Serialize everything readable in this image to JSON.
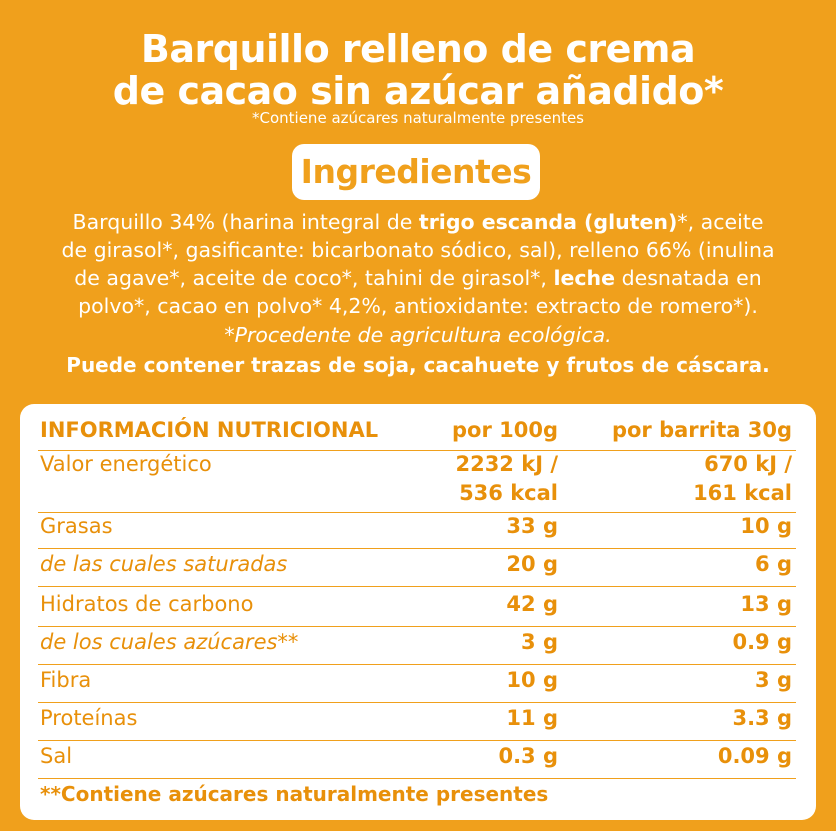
{
  "title": {
    "line1": "Barquillo relleno de crema",
    "line2": "de cacao sin azúcar añadido*",
    "note": "*Contiene azúcares naturalmente presentes"
  },
  "badge": "Ingredientes",
  "ingredients": {
    "l1a": "Barquillo 34% (harina integral de ",
    "l1b": "trigo escanda (gluten)",
    "l1c": "*, aceite",
    "l2": "de girasol*, gasificante: bicarbonato sódico, sal), relleno 66% (inulina",
    "l3": "de agave*, aceite de coco*, tahini de girasol*, ",
    "l3b": "leche",
    "l3c": " desnatada en",
    "l4": "polvo*, cacao en polvo* 4,2%, antioxidante: extracto de romero*).",
    "organic": "*Procedente de agricultura ecológica.",
    "traces": "Puede contener trazas de soja, cacahuete y frutos de cáscara."
  },
  "table": {
    "header": [
      "INFORMACIÓN NUTRICIONAL",
      "por 100g",
      "por barrita 30g"
    ],
    "energy": {
      "label": "Valor energético",
      "v100a": "2232 kJ /",
      "v100b": "536 kcal",
      "vbara": "670 kJ /",
      "vbarb": "161 kcal"
    },
    "rows": [
      {
        "label": "Grasas",
        "v100": "33 g",
        "vbar": "10 g"
      },
      {
        "label": "de las cuales saturadas",
        "v100": "20 g",
        "vbar": "6 g"
      },
      {
        "label": "Hidratos de carbono",
        "v100": "42 g",
        "vbar": "13 g"
      },
      {
        "label": "de los cuales azúcares**",
        "v100": "3 g",
        "vbar": "0.9 g"
      },
      {
        "label": "Fibra",
        "v100": "10 g",
        "vbar": "3 g"
      },
      {
        "label": "Proteínas",
        "v100": "11 g",
        "vbar": "3.3 g"
      },
      {
        "label": "Sal",
        "v100": "0.3 g",
        "vbar": "0.09 g"
      }
    ],
    "footnote": "**Contiene azúcares naturalmente presentes"
  },
  "colors": {
    "background": "#f0a01c",
    "text_on_panel": "#e8900a",
    "panel": "#ffffff"
  }
}
